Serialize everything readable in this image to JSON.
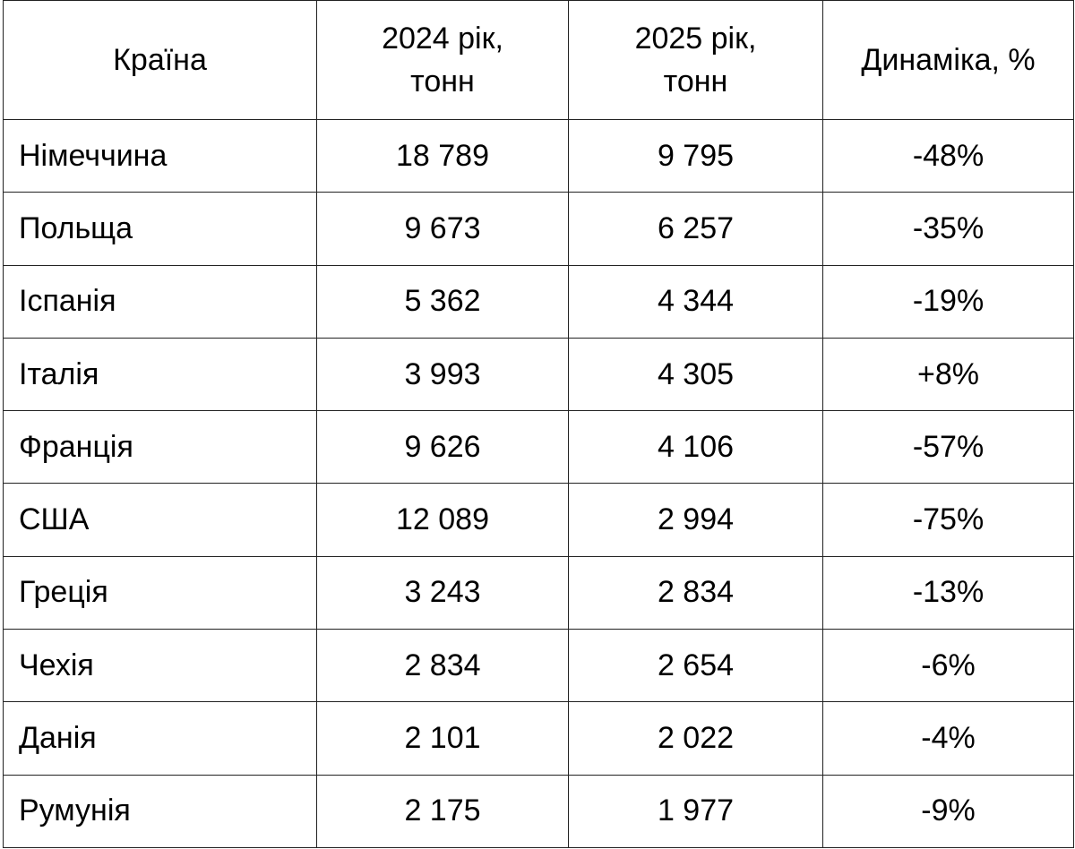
{
  "table": {
    "header": [
      [
        "Країна"
      ],
      [
        "2024 рік,",
        "тонн"
      ],
      [
        "2025 рік,",
        "тонн"
      ],
      [
        "Динаміка, %"
      ]
    ],
    "rows": [
      [
        "Німеччина",
        "18 789",
        "9 795",
        "-48%"
      ],
      [
        "Польща",
        "9 673",
        "6 257",
        "-35%"
      ],
      [
        "Іспанія",
        "5 362",
        "4 344",
        "-19%"
      ],
      [
        "Італія",
        "3 993",
        "4 305",
        "+8%"
      ],
      [
        "Франція",
        "9 626",
        "4 106",
        "-57%"
      ],
      [
        "США",
        "12 089",
        "2 994",
        "-75%"
      ],
      [
        "Греція",
        "3 243",
        "2 834",
        "-13%"
      ],
      [
        "Чехія",
        "2 834",
        "2 654",
        "-6%"
      ],
      [
        "Данія",
        "2 101",
        "2 022",
        "-4%"
      ],
      [
        "Румунія",
        "2 175",
        "1 977",
        "-9%"
      ]
    ]
  }
}
